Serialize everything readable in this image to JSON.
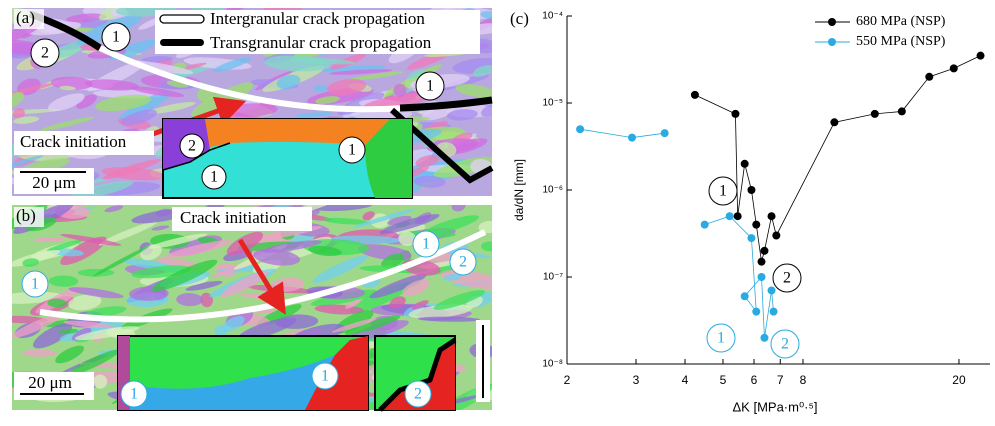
{
  "panels": {
    "a": {
      "label": "(a)",
      "legend": [
        "Intergranular crack propagation",
        "Transgranular crack propagation"
      ],
      "initiation": "Crack initiation",
      "scale": "20 μm",
      "markers": [
        "2",
        "1",
        "1"
      ],
      "inset_markers": [
        "2",
        "1",
        "1"
      ]
    },
    "b": {
      "label": "(b)",
      "initiation": "Crack initiation",
      "scale": "20 μm",
      "markers": [
        "1",
        "1",
        "2"
      ],
      "inset_markers": [
        "1",
        "1",
        "2"
      ]
    }
  },
  "chart_data": {
    "type": "line",
    "label": "(c)",
    "x_label": "ΔK [MPa·m⁰·⁵]",
    "y_label": "da/dN [mm]",
    "xlog": true,
    "ylog": true,
    "xlim": [
      2,
      24
    ],
    "ylim": [
      1e-08,
      0.0001
    ],
    "xticks": [
      2,
      3,
      4,
      5,
      6,
      7,
      8,
      20
    ],
    "yticks": [
      {
        "value": 1e-08,
        "label": "10⁻⁸"
      },
      {
        "value": 1e-07,
        "label": "10⁻⁷"
      },
      {
        "value": 1e-06,
        "label": "10⁻⁶"
      },
      {
        "value": 1e-05,
        "label": "10⁻⁵"
      },
      {
        "value": 0.0001,
        "label": "10⁻⁴"
      }
    ],
    "legend_position": "upper right",
    "series": [
      {
        "name": "680 MPa (NSP)",
        "color": "#000000",
        "x": [
          4.24,
          5.38,
          5.45,
          5.68,
          5.91,
          6.08,
          6.27,
          6.38,
          6.65,
          6.84,
          9.62,
          12.2,
          14.3,
          16.8,
          19.4,
          22.7
        ],
        "values": [
          1.24e-05,
          7.5e-06,
          5e-07,
          2e-06,
          1e-06,
          4e-07,
          1.5e-07,
          2e-07,
          5e-07,
          3e-07,
          6e-06,
          7.5e-06,
          8e-06,
          2e-05,
          2.5e-05,
          3.5e-05
        ]
      },
      {
        "name": "550 MPa (NSP)",
        "color": "#29abe2",
        "x": [
          2.16,
          2.93,
          3.55,
          null,
          4.49,
          5.2,
          5.91,
          6.08,
          5.68,
          6.27,
          6.38,
          6.65,
          6.73
        ],
        "values": [
          5e-06,
          4e-06,
          4.5e-06,
          null,
          4e-07,
          5e-07,
          2.8e-07,
          4e-08,
          6e-08,
          1e-07,
          2e-08,
          7e-08,
          4e-08
        ]
      }
    ],
    "annotations": [
      {
        "text": "1",
        "color": "#000000"
      },
      {
        "text": "2",
        "color": "#000000"
      },
      {
        "text": "1",
        "color": "#29abe2"
      },
      {
        "text": "2",
        "color": "#29abe2"
      }
    ]
  }
}
